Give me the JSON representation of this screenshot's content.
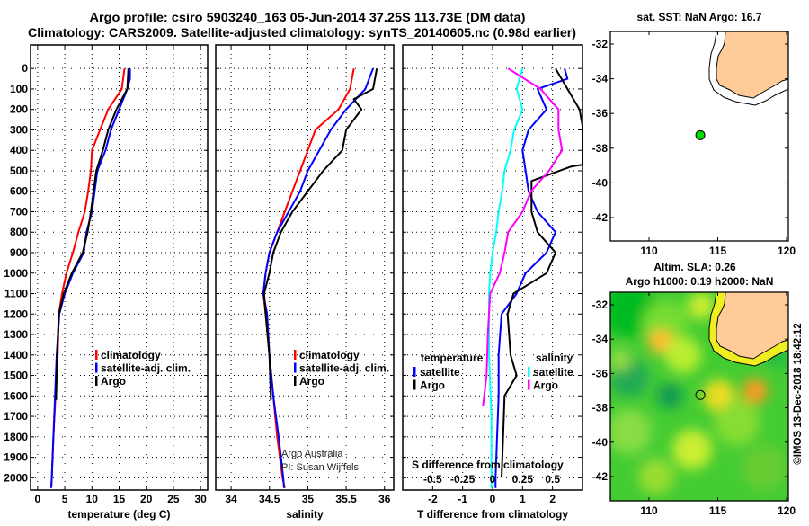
{
  "title_line1": "Argo profile: csiro 5903240_163 05-Jun-2014 37.25S 113.73E (DM data)",
  "title_line2": "Climatology: CARS2009. Satellite-adjusted climatology: synTS_20140605.nc (0.98d earlier)",
  "credit": "©IMOS 13-Dec-2018 18:42:12",
  "colors": {
    "climatology": "#ff0000",
    "satellite": "#0000ff",
    "argo": "#000000",
    "sal_satellite": "#00ffff",
    "sal_argo": "#ff00ff",
    "land": "#ffcc99",
    "marker": "#00dd00"
  },
  "chart_data": [
    {
      "type": "line",
      "name": "temperature",
      "xlabel": "temperature (deg C)",
      "ylabel": "",
      "xlim": [
        -1.3,
        31.3
      ],
      "ylim": [
        2060,
        -115
      ],
      "xticks": [
        0,
        5,
        10,
        15,
        20,
        25,
        30
      ],
      "yticks": [
        0,
        100,
        200,
        300,
        400,
        500,
        600,
        700,
        800,
        900,
        1000,
        1100,
        1200,
        1300,
        1400,
        1500,
        1600,
        1700,
        1800,
        1900,
        2000
      ],
      "grid": true,
      "legend": [
        "climatology",
        "satellite-adj. clim.",
        "Argo"
      ],
      "series": [
        {
          "name": "climatology",
          "color": "#ff0000",
          "points": [
            [
              0,
              16
            ],
            [
              100,
              15.5
            ],
            [
              200,
              13
            ],
            [
              300,
              11.5
            ],
            [
              400,
              10
            ],
            [
              500,
              9.8
            ],
            [
              600,
              9.3
            ],
            [
              700,
              8.7
            ],
            [
              800,
              7.5
            ],
            [
              900,
              6.5
            ],
            [
              1000,
              5.3
            ],
            [
              1100,
              4.5
            ],
            [
              1200,
              3.9
            ],
            [
              1400,
              3.7
            ],
            [
              1600,
              3.3
            ],
            [
              1800,
              2.9
            ],
            [
              2000,
              2.6
            ],
            [
              2050,
              2.5
            ]
          ]
        },
        {
          "name": "satellite-adj. clim.",
          "color": "#0000ff",
          "points": [
            [
              0,
              17
            ],
            [
              50,
              17
            ],
            [
              100,
              16.5
            ],
            [
              200,
              15
            ],
            [
              300,
              13.5
            ],
            [
              400,
              12.5
            ],
            [
              500,
              11
            ],
            [
              600,
              10.5
            ],
            [
              700,
              10
            ],
            [
              800,
              9
            ],
            [
              900,
              8.5
            ],
            [
              1000,
              6.5
            ],
            [
              1100,
              5
            ],
            [
              1200,
              4
            ],
            [
              1400,
              3.5
            ],
            [
              1600,
              3.2
            ],
            [
              1800,
              2.9
            ],
            [
              2000,
              2.6
            ],
            [
              2050,
              2.5
            ]
          ]
        },
        {
          "name": "Argo",
          "color": "#000000",
          "points": [
            [
              0,
              16.7
            ],
            [
              100,
              16.5
            ],
            [
              200,
              14.5
            ],
            [
              300,
              13
            ],
            [
              400,
              12
            ],
            [
              500,
              10.8
            ],
            [
              600,
              10.3
            ],
            [
              700,
              9.8
            ],
            [
              800,
              9.2
            ],
            [
              900,
              8.3
            ],
            [
              1000,
              6.3
            ],
            [
              1100,
              4.8
            ],
            [
              1200,
              3.9
            ],
            [
              1400,
              3.6
            ],
            [
              1620,
              3.4
            ]
          ]
        }
      ]
    },
    {
      "type": "line",
      "name": "salinity",
      "xlabel": "salinity",
      "xlim": [
        33.8,
        36.12
      ],
      "ylim": [
        2060,
        -115
      ],
      "xticks": [
        34,
        34.5,
        35,
        35.5,
        36
      ],
      "yticks": [
        0,
        100,
        200,
        300,
        400,
        500,
        600,
        700,
        800,
        900,
        1000,
        1100,
        1200,
        1300,
        1400,
        1500,
        1600,
        1700,
        1800,
        1900,
        2000
      ],
      "grid": true,
      "legend": [
        "climatology",
        "satellite-adj. clim.",
        "Argo"
      ],
      "annotations": [
        "Argo Australia",
        "PI: Susan Wijffels"
      ],
      "series": [
        {
          "name": "climatology",
          "color": "#ff0000",
          "points": [
            [
              0,
              35.6
            ],
            [
              100,
              35.55
            ],
            [
              200,
              35.4
            ],
            [
              300,
              35.1
            ],
            [
              400,
              35.0
            ],
            [
              500,
              34.9
            ],
            [
              600,
              34.8
            ],
            [
              700,
              34.7
            ],
            [
              800,
              34.6
            ],
            [
              900,
              34.5
            ],
            [
              1000,
              34.45
            ],
            [
              1100,
              34.42
            ],
            [
              1200,
              34.45
            ],
            [
              1400,
              34.5
            ],
            [
              1600,
              34.55
            ],
            [
              1800,
              34.6
            ],
            [
              2000,
              34.67
            ],
            [
              2050,
              34.7
            ]
          ]
        },
        {
          "name": "satellite-adj. clim.",
          "color": "#0000ff",
          "points": [
            [
              0,
              35.85
            ],
            [
              100,
              35.75
            ],
            [
              200,
              35.5
            ],
            [
              300,
              35.3
            ],
            [
              400,
              35.15
            ],
            [
              500,
              35.0
            ],
            [
              600,
              34.9
            ],
            [
              700,
              34.75
            ],
            [
              800,
              34.6
            ],
            [
              900,
              34.5
            ],
            [
              1000,
              34.45
            ],
            [
              1100,
              34.42
            ],
            [
              1200,
              34.47
            ],
            [
              1400,
              34.5
            ],
            [
              1600,
              34.55
            ],
            [
              1800,
              34.62
            ],
            [
              2000,
              34.68
            ],
            [
              2050,
              34.69
            ]
          ]
        },
        {
          "name": "Argo",
          "color": "#000000",
          "points": [
            [
              0,
              35.9
            ],
            [
              100,
              35.85
            ],
            [
              150,
              35.6
            ],
            [
              200,
              35.7
            ],
            [
              300,
              35.5
            ],
            [
              400,
              35.45
            ],
            [
              500,
              35.2
            ],
            [
              600,
              35.0
            ],
            [
              700,
              34.8
            ],
            [
              800,
              34.65
            ],
            [
              900,
              34.55
            ],
            [
              1000,
              34.5
            ],
            [
              1100,
              34.43
            ],
            [
              1200,
              34.45
            ],
            [
              1400,
              34.5
            ],
            [
              1620,
              34.52
            ]
          ]
        }
      ]
    },
    {
      "type": "line",
      "name": "differences",
      "xlabel": "T difference from climatology",
      "x2label": "S difference from climatology",
      "xlim": [
        -3,
        3
      ],
      "x2lim": [
        -0.75,
        0.75
      ],
      "ylim": [
        2060,
        -115
      ],
      "xticks": [
        -2,
        -1,
        0,
        1,
        2
      ],
      "x2ticks": [
        "-0.5",
        "-0.25",
        "0",
        "0.25",
        "0.5"
      ],
      "x2tick_values": [
        -0.5,
        -0.25,
        0,
        0.25,
        0.5
      ],
      "yticks": [
        0,
        100,
        200,
        300,
        400,
        500,
        600,
        700,
        800,
        900,
        1000,
        1100,
        1200,
        1300,
        1400,
        1500,
        1600,
        1700,
        1800,
        1900,
        2000
      ],
      "grid": true,
      "legend_temperature": {
        "title": "temperature",
        "items": [
          "satellite",
          "Argo"
        ]
      },
      "legend_salinity": {
        "title": "salinity",
        "items": [
          "satellite",
          "Argo"
        ]
      },
      "series": [
        {
          "name": "T satellite",
          "axis": "T",
          "color": "#0000ff",
          "points": [
            [
              0,
              2.4
            ],
            [
              50,
              2.5
            ],
            [
              100,
              1.5
            ],
            [
              200,
              1.8
            ],
            [
              300,
              1.2
            ],
            [
              400,
              1.0
            ],
            [
              500,
              1.1
            ],
            [
              600,
              1.2
            ],
            [
              700,
              1.5
            ],
            [
              800,
              2.1
            ],
            [
              900,
              1.8
            ],
            [
              1000,
              1.1
            ],
            [
              1100,
              0.8
            ],
            [
              1200,
              0.3
            ],
            [
              1400,
              0.2
            ],
            [
              1600,
              0.2
            ],
            [
              1800,
              0.15
            ],
            [
              2000,
              0.1
            ],
            [
              2050,
              0.1
            ]
          ]
        },
        {
          "name": "T Argo",
          "axis": "T",
          "color": "#000000",
          "points": [
            [
              0,
              2.1
            ],
            [
              100,
              2.5
            ],
            [
              200,
              2.9
            ],
            [
              280,
              3.05
            ],
            [
              470,
              3.05
            ],
            [
              480,
              2.6
            ],
            [
              550,
              1.3
            ],
            [
              700,
              1.3
            ],
            [
              800,
              1.5
            ],
            [
              900,
              2.1
            ],
            [
              1000,
              1.8
            ],
            [
              1100,
              0.7
            ],
            [
              1200,
              0.5
            ],
            [
              1400,
              0.6
            ],
            [
              1500,
              0.8
            ],
            [
              1600,
              0.4
            ],
            [
              1800,
              0.35
            ],
            [
              2000,
              0.3
            ]
          ]
        },
        {
          "name": "S satellite",
          "axis": "S",
          "color": "#00ffff",
          "points": [
            [
              0,
              0.25
            ],
            [
              100,
              0.2
            ],
            [
              200,
              0.25
            ],
            [
              300,
              0.18
            ],
            [
              400,
              0.15
            ],
            [
              500,
              0.1
            ],
            [
              600,
              0.08
            ],
            [
              700,
              0.05
            ],
            [
              800,
              0.03
            ],
            [
              900,
              0.0
            ],
            [
              1000,
              -0.02
            ],
            [
              1100,
              -0.03
            ],
            [
              1400,
              -0.03
            ],
            [
              1700,
              -0.01
            ],
            [
              2000,
              -0.01
            ],
            [
              2050,
              -0.01
            ]
          ]
        },
        {
          "name": "S Argo",
          "axis": "S",
          "color": "#ff00ff",
          "points": [
            [
              0,
              0.13
            ],
            [
              100,
              0.4
            ],
            [
              200,
              0.55
            ],
            [
              300,
              0.55
            ],
            [
              400,
              0.58
            ],
            [
              500,
              0.47
            ],
            [
              600,
              0.32
            ],
            [
              700,
              0.25
            ],
            [
              800,
              0.13
            ],
            [
              900,
              0.1
            ],
            [
              1000,
              0.06
            ],
            [
              1100,
              -0.02
            ],
            [
              1300,
              -0.04
            ],
            [
              1500,
              -0.05
            ],
            [
              1650,
              -0.08
            ]
          ]
        }
      ]
    }
  ],
  "map_sst": {
    "title": "sat. SST: NaN Argo: 16.7",
    "xticks": [
      110,
      115,
      120
    ],
    "yticks": [
      -32,
      -34,
      -36,
      -38,
      -40,
      -42
    ],
    "float_position": {
      "lon": 113.73,
      "lat": -37.25
    }
  },
  "map_sla": {
    "title_line1": "Altim. SLA: 0.26",
    "title_line2": "Argo h1000: 0.19 h2000: NaN",
    "xticks": [
      110,
      115,
      120
    ],
    "yticks": [
      -32,
      -34,
      -36,
      -38,
      -40,
      -42
    ],
    "float_position": {
      "lon": 113.73,
      "lat": -37.25
    }
  }
}
